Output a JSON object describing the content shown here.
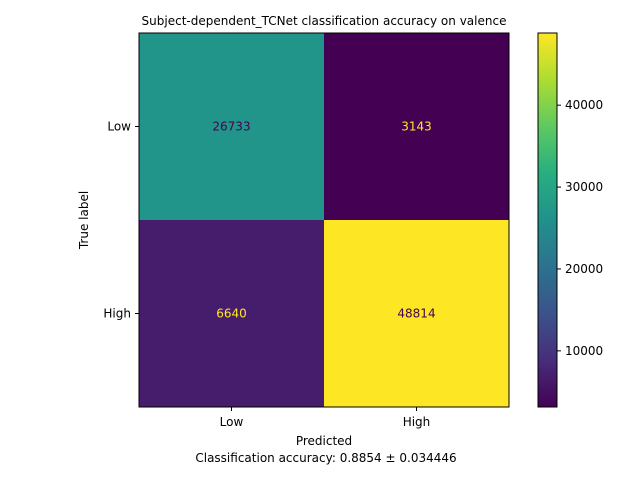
{
  "chart_data": {
    "type": "heatmap",
    "title": "Subject-dependent_TCNet classification accuracy on valence",
    "xlabel": "Predicted",
    "ylabel": "True label",
    "x_categories": [
      "Low",
      "High"
    ],
    "y_categories": [
      "Low",
      "High"
    ],
    "values": [
      [
        26733,
        3143
      ],
      [
        6640,
        48814
      ]
    ],
    "colormap": "viridis",
    "colorbar": {
      "range": [
        3143,
        48814
      ],
      "ticks": [
        10000,
        20000,
        30000,
        40000
      ],
      "tick_labels": [
        "10000",
        "20000",
        "30000",
        "40000"
      ]
    },
    "footer": "Classification accuracy: 0.8854 ± 0.034446",
    "text_colors": {
      "on_dark": "#fde725",
      "on_light": "#440154"
    }
  }
}
